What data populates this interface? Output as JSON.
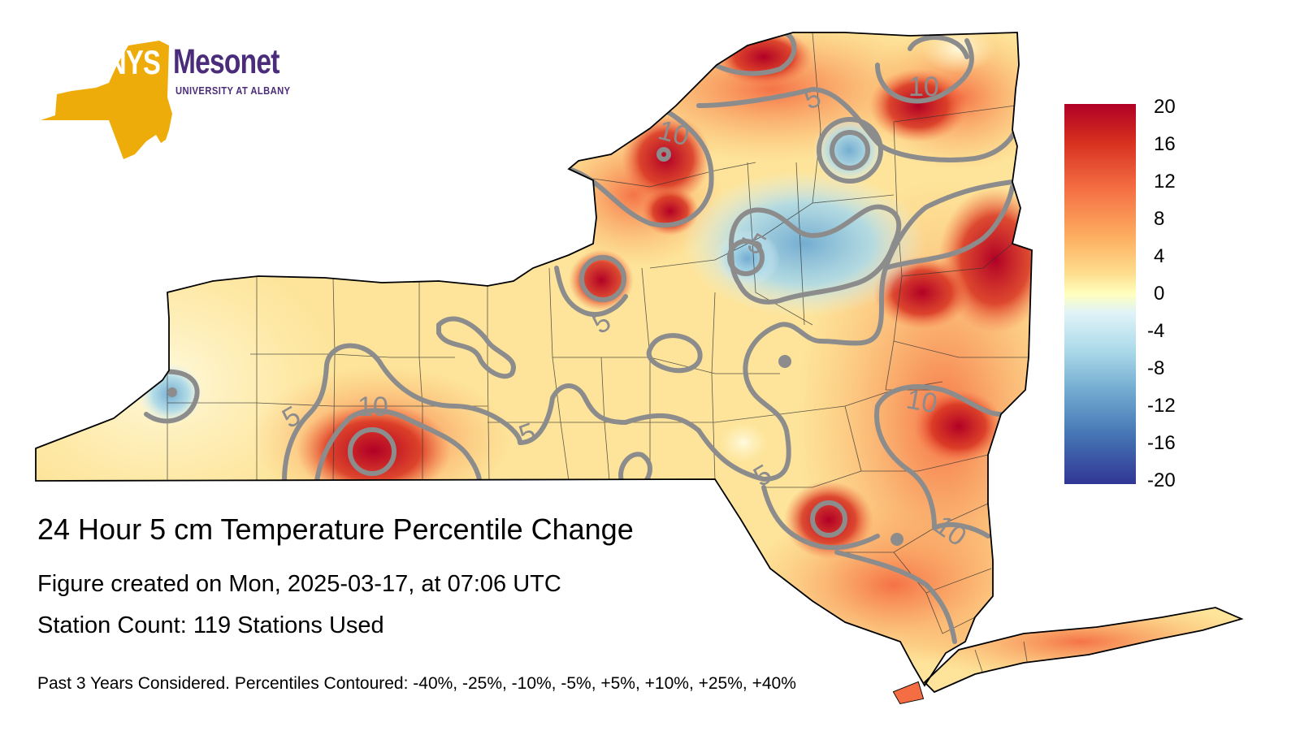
{
  "logo": {
    "nys": "NYS",
    "mesonet": "Mesonet",
    "university": "UNIVERSITY AT ALBANY"
  },
  "title": "24 Hour 5 cm Temperature Percentile Change",
  "created": "Figure created on Mon, 2025-03-17, at 07:06 UTC",
  "station_count": "Station Count: 119 Stations Used",
  "footnote": "Past 3 Years Considered. Percentiles Contoured: -40%, -25%, -10%, -5%, +5%, +10%, +25%, +40%",
  "colorbar": {
    "ticks": [
      "20",
      "16",
      "12",
      "8",
      "4",
      "0",
      "-4",
      "-8",
      "-12",
      "-16",
      "-20"
    ],
    "colors": {
      "max": "#b10026",
      "warm": "#f46d43",
      "neutral": "#ffffbf",
      "cool": "#74add1",
      "min": "#313695"
    }
  },
  "contour_labels": [
    "10",
    "5",
    "10",
    "-5",
    "5",
    "5",
    "10",
    "5",
    "5",
    "10",
    "10"
  ],
  "colors": {
    "contour": "#8c8c8c",
    "county_border": "#222222"
  }
}
